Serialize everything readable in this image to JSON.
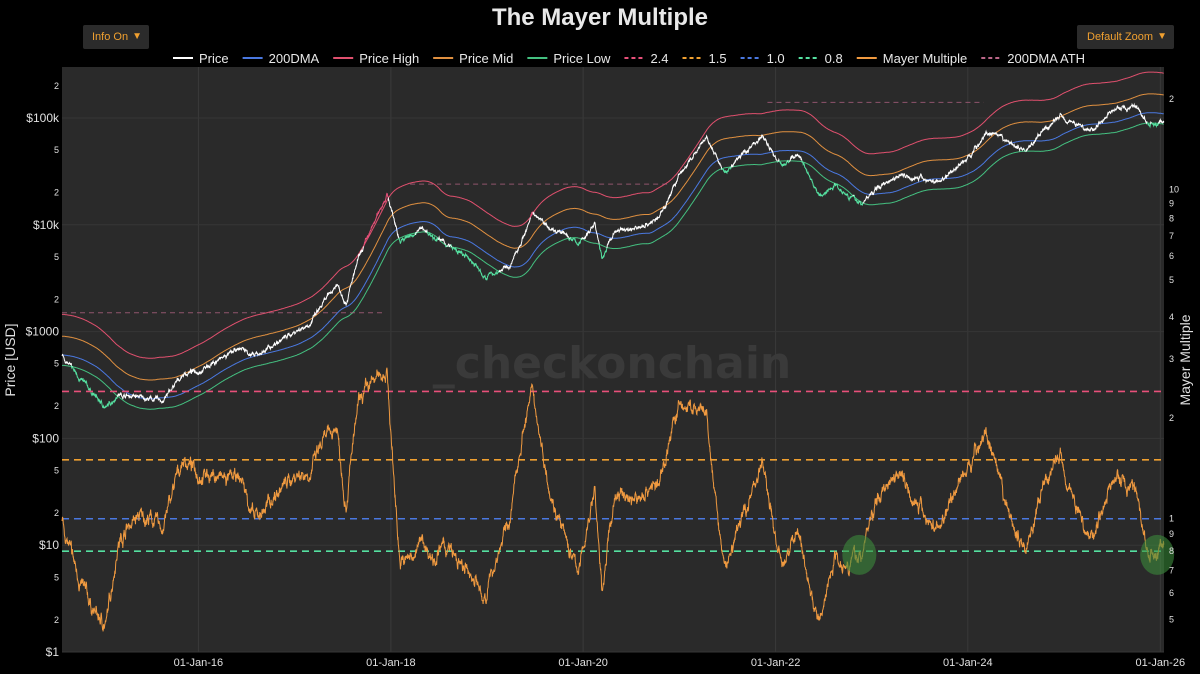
{
  "header": {
    "title": "The Mayer Multiple",
    "info_toggle": "Info On",
    "zoom_select": "Default Zoom",
    "caret_icon": "▼"
  },
  "colors": {
    "background": "#000000",
    "plot_bg": "#2a2a2a",
    "price": "#ffffff",
    "dma200": "#4a78e0",
    "price_high": "#e0506e",
    "price_mid": "#e09040",
    "price_low": "#44c080",
    "band_2_4": "#e8507a",
    "band_1_5": "#f0a030",
    "band_1_0": "#4a78e0",
    "band_0_8": "#55e0a0",
    "mayer": "#f09a40",
    "ath": "#bb6688",
    "highlight": "#3c8a3c",
    "watermark": "#3a3a3a"
  },
  "watermark": "_checkonchain",
  "chart_data": {
    "type": "line",
    "title": "The Mayer Multiple",
    "x_range": [
      "2014-08-01",
      "2026-01-15"
    ],
    "x_ticks": [
      "01-Jan-16",
      "01-Jan-18",
      "01-Jan-20",
      "01-Jan-22",
      "01-Jan-24",
      "01-Jan-26"
    ],
    "left_axis": {
      "label": "Price [USD]",
      "scale": "log",
      "range": [
        1,
        300000
      ],
      "ticks": [
        {
          "v": 1,
          "t": "$1"
        },
        {
          "v": 2,
          "t": "2"
        },
        {
          "v": 5,
          "t": "5"
        },
        {
          "v": 10,
          "t": "$10"
        },
        {
          "v": 20,
          "t": "2"
        },
        {
          "v": 50,
          "t": "5"
        },
        {
          "v": 100,
          "t": "$100"
        },
        {
          "v": 200,
          "t": "2"
        },
        {
          "v": 500,
          "t": "5"
        },
        {
          "v": 1000,
          "t": "$1000"
        },
        {
          "v": 2000,
          "t": "2"
        },
        {
          "v": 5000,
          "t": "5"
        },
        {
          "v": 10000,
          "t": "$10k"
        },
        {
          "v": 20000,
          "t": "2"
        },
        {
          "v": 50000,
          "t": "5"
        },
        {
          "v": 100000,
          "t": "$100k"
        },
        {
          "v": 200000,
          "t": "2"
        }
      ]
    },
    "right_axis": {
      "label": "Mayer Multiple",
      "scale": "log",
      "lower_range": [
        0.4,
        4.5
      ],
      "lower_ticks": [
        {
          "v": 0.5,
          "t": "5"
        },
        {
          "v": 0.6,
          "t": "6"
        },
        {
          "v": 0.7,
          "t": "7"
        },
        {
          "v": 0.8,
          "t": "8"
        },
        {
          "v": 0.9,
          "t": "9"
        },
        {
          "v": 1,
          "t": "1"
        },
        {
          "v": 2,
          "t": "2"
        },
        {
          "v": 3,
          "t": "3"
        },
        {
          "v": 4,
          "t": "4"
        }
      ],
      "upper_ticks": [
        {
          "v": 5,
          "t": "5"
        },
        {
          "v": 6,
          "t": "6"
        },
        {
          "v": 7,
          "t": "7"
        },
        {
          "v": 8,
          "t": "8"
        },
        {
          "v": 9,
          "t": "9"
        },
        {
          "v": 10,
          "t": "10"
        },
        {
          "v": 20,
          "t": "2"
        }
      ]
    },
    "legend": [
      "Price",
      "200DMA",
      "Price High",
      "Price Mid",
      "Price Low",
      "2.4",
      "1.5",
      "1.0",
      "0.8",
      "Mayer Multiple",
      "200DMA ATH"
    ],
    "bands": [
      {
        "name": "2.4",
        "value": 2.4
      },
      {
        "name": "1.5",
        "value": 1.5
      },
      {
        "name": "1.0",
        "value": 1.0
      },
      {
        "name": "0.8",
        "value": 0.8
      }
    ],
    "ath_segments": [
      {
        "from": "2014-08-01",
        "to": "2017-12-01",
        "value": 1500
      },
      {
        "from": "2018-03-15",
        "to": "2020-12-01",
        "value": 24000
      },
      {
        "from": "2021-12-01",
        "to": "2024-03-01",
        "value": 140000
      }
    ],
    "price_anchors": [
      [
        "2014-08-01",
        590
      ],
      [
        "2014-10-01",
        380
      ],
      [
        "2015-01-15",
        190
      ],
      [
        "2015-03-01",
        260
      ],
      [
        "2015-08-20",
        225
      ],
      [
        "2015-11-05",
        400
      ],
      [
        "2016-01-01",
        430
      ],
      [
        "2016-06-15",
        700
      ],
      [
        "2016-08-01",
        580
      ],
      [
        "2017-01-01",
        1000
      ],
      [
        "2017-03-01",
        1200
      ],
      [
        "2017-06-10",
        2800
      ],
      [
        "2017-07-15",
        1900
      ],
      [
        "2017-09-01",
        4800
      ],
      [
        "2017-12-17",
        19500
      ],
      [
        "2018-02-06",
        6900
      ],
      [
        "2018-05-01",
        9200
      ],
      [
        "2018-08-01",
        6500
      ],
      [
        "2018-11-20",
        4300
      ],
      [
        "2018-12-15",
        3200
      ],
      [
        "2019-04-01",
        4100
      ],
      [
        "2019-06-26",
        13000
      ],
      [
        "2019-09-01",
        9600
      ],
      [
        "2019-12-17",
        6600
      ],
      [
        "2020-02-15",
        10300
      ],
      [
        "2020-03-12",
        4800
      ],
      [
        "2020-05-01",
        8800
      ],
      [
        "2020-07-20",
        9200
      ],
      [
        "2020-10-15",
        11500
      ],
      [
        "2020-12-31",
        29000
      ],
      [
        "2021-04-14",
        64000
      ],
      [
        "2021-06-22",
        30000
      ],
      [
        "2021-09-01",
        47000
      ],
      [
        "2021-11-10",
        68000
      ],
      [
        "2022-01-24",
        35000
      ],
      [
        "2022-03-28",
        47000
      ],
      [
        "2022-06-18",
        18000
      ],
      [
        "2022-08-15",
        24000
      ],
      [
        "2022-11-21",
        15600
      ],
      [
        "2023-01-31",
        23000
      ],
      [
        "2023-04-15",
        30000
      ],
      [
        "2023-09-11",
        25000
      ],
      [
        "2023-12-31",
        42000
      ],
      [
        "2024-03-14",
        73000
      ],
      [
        "2024-08-05",
        50000
      ],
      [
        "2024-12-17",
        106000
      ],
      [
        "2025-04-08",
        76000
      ],
      [
        "2025-07-14",
        122000
      ],
      [
        "2025-10-06",
        125000
      ],
      [
        "2025-11-21",
        84000
      ],
      [
        "2026-01-10",
        91000
      ]
    ]
  }
}
